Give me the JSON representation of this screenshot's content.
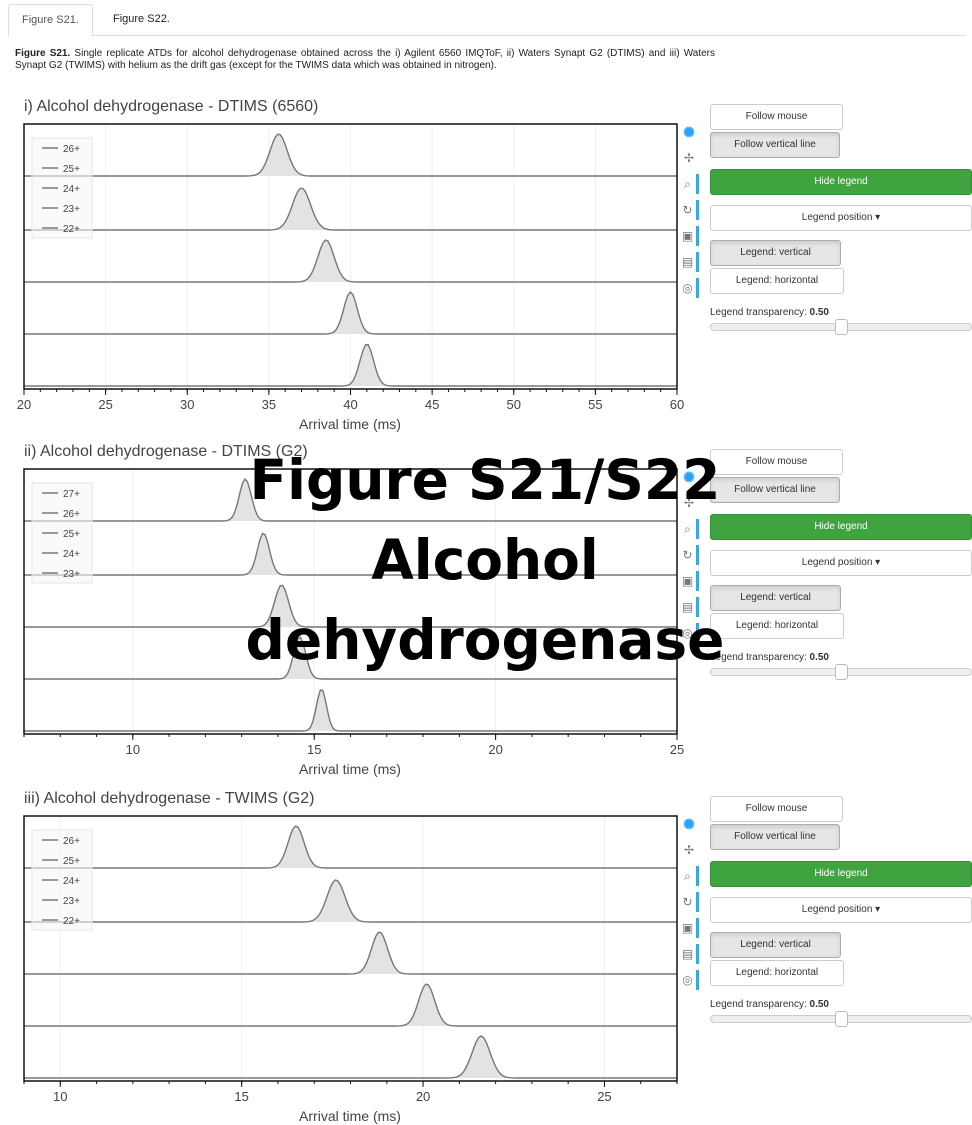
{
  "tabs": [
    "Figure S21.",
    "Figure S22."
  ],
  "caption": {
    "label": "Figure S21.",
    "text": " Single replicate ATDs for alcohol dehydrogenase obtained across the i) Agilent 6560 IMQToF, ii) Waters Synapt G2 (DTIMS) and iii) Waters Synapt G2 (TWIMS) with helium as the drift gas (except for the TWIMS data which was obtained in nitrogen)."
  },
  "overlay": {
    "line1": "Figure S21/S22",
    "line2": "Alcohol",
    "line3": "dehydrogenase"
  },
  "controls": {
    "follow_mouse": "Follow mouse",
    "follow_vertical": "Follow vertical line",
    "hide_legend": "Hide legend",
    "legend_position": "Legend position ▾",
    "legend_vertical": "Legend: vertical",
    "legend_horizontal": "Legend: horizontal",
    "legend_transparency_label": "Legend transparency:",
    "legend_transparency_value": "0.50",
    "legend_transparency": 0.5
  },
  "toolbar_icons": [
    "color-wheel-icon",
    "pan-icon",
    "zoom-icon",
    "reset-icon",
    "save-icon",
    "hover-icon",
    "crosshair-icon"
  ],
  "colors": {
    "trace": "#777777",
    "fill": "#e3e3e3",
    "accent_green": "#3fa33f",
    "tool_active": "#38a7e0"
  },
  "chart_data": [
    {
      "type": "line",
      "title": "i) Alcohol dehydrogenase - DTIMS (6560)",
      "xlabel": "Arrival time (ms)",
      "xlim": [
        20,
        60
      ],
      "xticks": [
        20,
        25,
        30,
        35,
        40,
        45,
        50,
        55,
        60
      ],
      "legend": [
        "26+",
        "25+",
        "24+",
        "23+",
        "22+"
      ],
      "legend_placement": "top-left",
      "series": [
        {
          "name": "26+",
          "peak_center": 35.6,
          "peak_width": 0.95
        },
        {
          "name": "25+",
          "peak_center": 37.0,
          "peak_width": 1.0
        },
        {
          "name": "24+",
          "peak_center": 38.5,
          "peak_width": 0.9
        },
        {
          "name": "23+",
          "peak_center": 40.0,
          "peak_width": 0.75
        },
        {
          "name": "22+",
          "peak_center": 41.0,
          "peak_width": 0.75
        }
      ]
    },
    {
      "type": "line",
      "title": "ii) Alcohol dehydrogenase - DTIMS (G2)",
      "xlabel": "Arrival time (ms)",
      "xlim": [
        7,
        25
      ],
      "xticks": [
        10,
        15,
        20,
        25
      ],
      "legend": [
        "27+",
        "26+",
        "25+",
        "24+",
        "23+"
      ],
      "legend_placement": "top-left",
      "series": [
        {
          "name": "27+",
          "peak_center": 13.1,
          "peak_width": 0.3
        },
        {
          "name": "26+",
          "peak_center": 13.6,
          "peak_width": 0.3
        },
        {
          "name": "25+",
          "peak_center": 14.1,
          "peak_width": 0.35
        },
        {
          "name": "24+",
          "peak_center": 14.6,
          "peak_width": 0.3
        },
        {
          "name": "23+",
          "peak_center": 15.2,
          "peak_width": 0.25
        }
      ]
    },
    {
      "type": "line",
      "title": "iii) Alcohol dehydrogenase - TWIMS (G2)",
      "xlabel": "Arrival time (ms)",
      "xlim": [
        9,
        27
      ],
      "xticks": [
        10,
        15,
        20,
        25
      ],
      "legend": [
        "26+",
        "25+",
        "24+",
        "23+",
        "22+"
      ],
      "legend_placement": "top-left",
      "series": [
        {
          "name": "26+",
          "peak_center": 16.5,
          "peak_width": 0.4
        },
        {
          "name": "25+",
          "peak_center": 17.6,
          "peak_width": 0.45
        },
        {
          "name": "24+",
          "peak_center": 18.8,
          "peak_width": 0.4
        },
        {
          "name": "23+",
          "peak_center": 20.1,
          "peak_width": 0.4
        },
        {
          "name": "22+",
          "peak_center": 21.6,
          "peak_width": 0.45
        }
      ]
    }
  ]
}
